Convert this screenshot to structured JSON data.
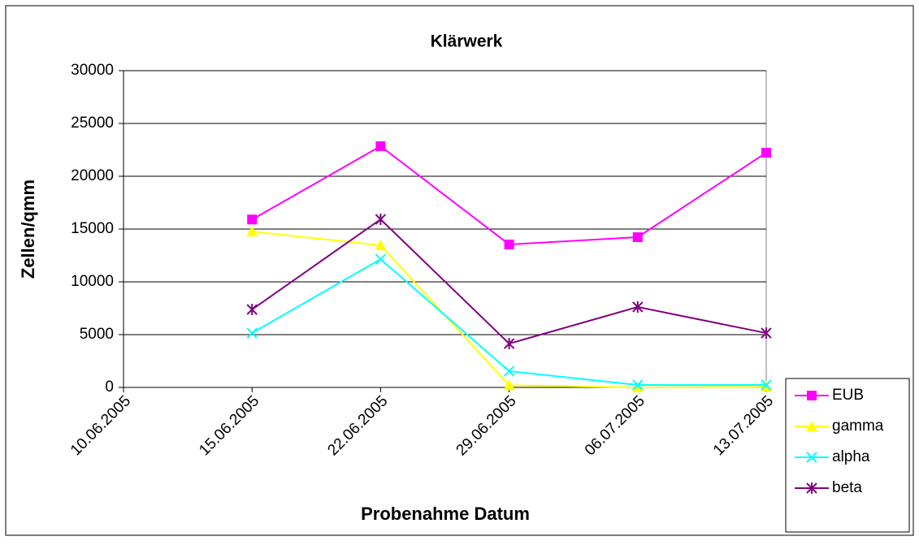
{
  "chart_data": {
    "type": "line",
    "title": "Klärwerk",
    "x_label": "Probenahme Datum",
    "y_label": "Zellen/qmm",
    "categories": [
      "10.06.2005",
      "15.06.2005",
      "22.06.2005",
      "29.06.2005",
      "06.07.2005",
      "13.07.2005"
    ],
    "series": [
      {
        "name": "EUB",
        "color": "#FF00FF",
        "marker": "square",
        "values": [
          null,
          15900,
          22850,
          13540,
          14230,
          22230
        ]
      },
      {
        "name": "gamma",
        "color": "#FFFF00",
        "marker": "triangle",
        "values": [
          null,
          14770,
          13460,
          200,
          0,
          50
        ]
      },
      {
        "name": "alpha",
        "color": "#00FFFF",
        "marker": "x",
        "values": [
          null,
          5150,
          12150,
          1540,
          230,
          230
        ]
      },
      {
        "name": "beta",
        "color": "#800080",
        "marker": "star",
        "values": [
          null,
          7380,
          15920,
          4150,
          7620,
          5150
        ]
      }
    ],
    "ylim": [
      0,
      30000
    ],
    "yticks": [
      0,
      5000,
      10000,
      15000,
      20000,
      25000,
      30000
    ],
    "grid": true,
    "legend": "lower right"
  }
}
